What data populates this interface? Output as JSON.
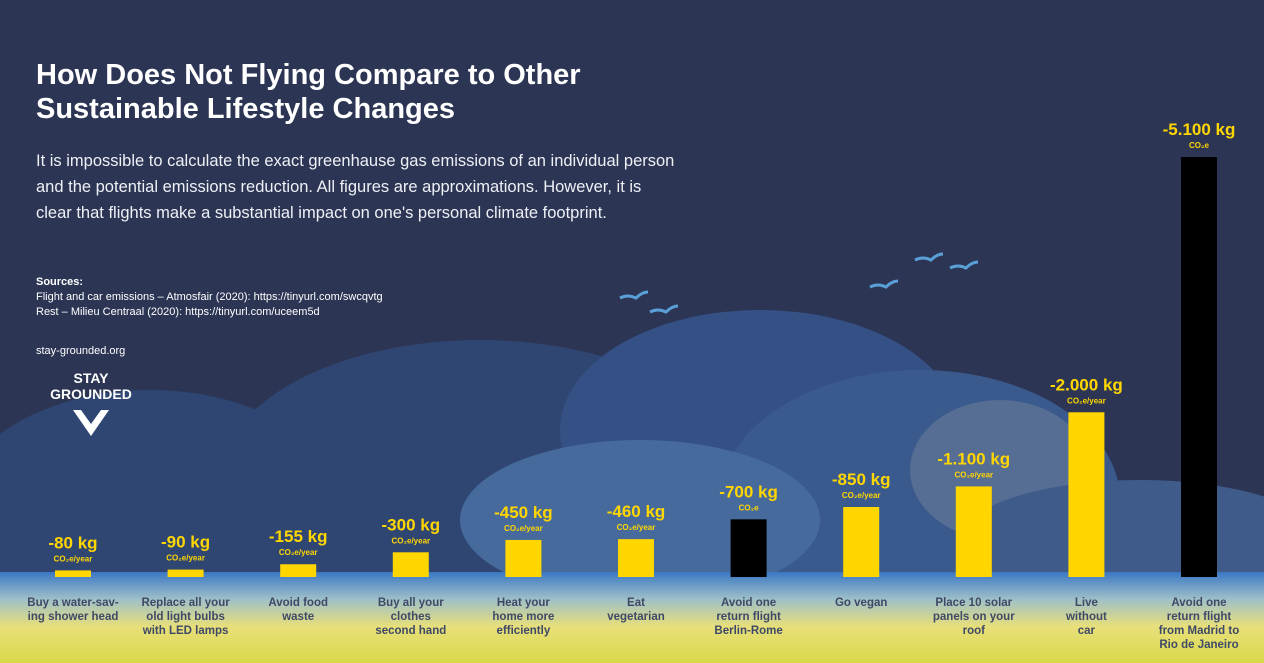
{
  "chart_data": {
    "type": "bar",
    "title": "How Does Not Flying Compare to Other Sustainable Lifestyle Changes",
    "subtitle": "It is impossible to calculate the exact greenhause gas emissions of an individual person and the potential emissions reduction. All figures are approximations. However, it is clear that flights make a substantial impact on one's personal climate footprint.",
    "sources_heading": "Sources:",
    "sources": [
      "Flight and car emissions – Atmosfair (2020): https://tinyurl.com/swcqvtg",
      "Rest – Milieu Centraal (2020):  https://tinyurl.com/uceem5d"
    ],
    "website": "stay-grounded.org",
    "logo": [
      "STAY",
      "GROUNDED"
    ],
    "categories": [
      "Buy a water-sav-\ning shower head",
      "Replace all your\nold light bulbs\nwith LED lamps",
      "Avoid food\nwaste",
      "Buy all your\nclothes\nsecond hand",
      "Heat your\nhome more\nefficiently",
      "Eat\nvegetarian",
      "Avoid one\nreturn flight\nBerlin-Rome",
      "Go vegan",
      "Place 10 solar\npanels on your\nroof",
      "Live\nwithout\ncar",
      "Avoid one\nreturn flight\nfrom Madrid to\nRio de Janeiro"
    ],
    "values": [
      -80,
      -90,
      -155,
      -300,
      -450,
      -460,
      -700,
      -850,
      -1100,
      -2000,
      -5100
    ],
    "value_labels": [
      "-80 kg",
      "-90 kg",
      "-155 kg",
      "-300 kg",
      "-450 kg",
      "-460 kg",
      "-700 kg",
      "-850 kg",
      "-1.100 kg",
      "-2.000 kg",
      "-5.100 kg"
    ],
    "unit_labels": [
      "CO₂e/year",
      "CO₂e/year",
      "CO₂e/year",
      "CO₂e/year",
      "CO₂e/year",
      "CO₂e/year",
      "CO₂e",
      "CO₂e/year",
      "CO₂e/year",
      "CO₂e/year",
      "CO₂e"
    ],
    "colors": [
      "#ffd600",
      "#ffd600",
      "#ffd600",
      "#ffd600",
      "#ffd600",
      "#ffd600",
      "#000000",
      "#ffd600",
      "#ffd600",
      "#ffd600",
      "#000000"
    ]
  }
}
